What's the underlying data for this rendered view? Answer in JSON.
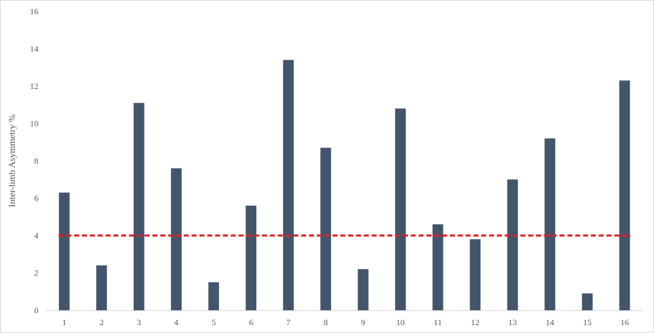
{
  "chart_data": {
    "type": "bar",
    "title": "",
    "xlabel": "",
    "ylabel": "Inter-limb  Asymmetry  %",
    "categories": [
      "1",
      "2",
      "3",
      "4",
      "5",
      "6",
      "7",
      "8",
      "9",
      "10",
      "11",
      "12",
      "13",
      "14",
      "15",
      "16"
    ],
    "series": [
      {
        "values": [
          6.3,
          2.4,
          11.1,
          7.6,
          1.5,
          5.6,
          13.4,
          8.7,
          2.2,
          10.8,
          4.6,
          3.8,
          7.0,
          9.2,
          0.9,
          12.3
        ]
      }
    ],
    "reference_line": {
      "value": 4,
      "style": "dashed",
      "color": "#e02020"
    },
    "ylim": [
      0,
      16
    ],
    "yticks": [
      0,
      2,
      4,
      6,
      8,
      10,
      12,
      14,
      16
    ],
    "grid": false,
    "legend": "none",
    "bar_color": "#44546a",
    "axis_color": "#d9d9d9"
  }
}
